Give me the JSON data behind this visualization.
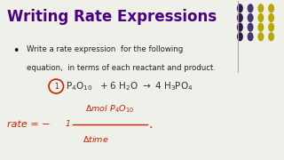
{
  "title": "Writing Rate Expressions",
  "title_color": "#4B0082",
  "bg_color": "#f0f0eb",
  "bullet_text_line1": "Write a rate expression  for the following",
  "bullet_text_line2": "equation,  in terms of each reactant and product.",
  "dot_colors": [
    [
      "#2d1a4a",
      "#4a3570",
      "#b8a800",
      "#b8a800"
    ],
    [
      "#2d1a4a",
      "#4a3570",
      "#b8a800",
      "#b8a800"
    ],
    [
      "#2d1a4a",
      "#4a3570",
      "#b8a800",
      "#b8a800"
    ],
    [
      "#2d1a4a",
      "#4a3570",
      "#b8a800",
      "#b8a800"
    ]
  ],
  "handwritten_color": "#cc2200",
  "eq_color": "#333333"
}
